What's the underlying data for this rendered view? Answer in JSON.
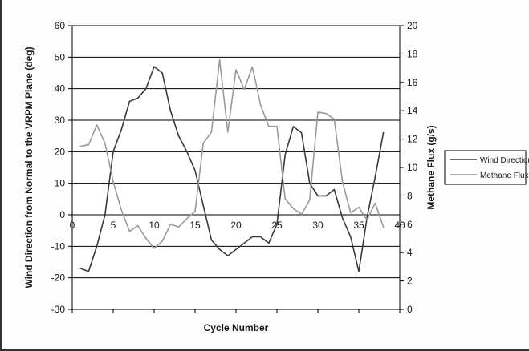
{
  "chart_data": {
    "type": "line",
    "title": "",
    "xlabel": "Cycle Number",
    "ylabel_left": "Wind Direction from Normal to the VRPM Plane (deg)",
    "ylabel_right": "Methane Flux (g/s)",
    "xlim": [
      0,
      40
    ],
    "ylim_left": [
      -30,
      60
    ],
    "ylim_right": [
      0,
      20
    ],
    "x_ticks": [
      "0",
      "5",
      "10",
      "15",
      "20",
      "25",
      "30",
      "35",
      "40"
    ],
    "y_left_ticks": [
      "60",
      "50",
      "40",
      "30",
      "20",
      "10",
      "0",
      "-10",
      "-20",
      "-30"
    ],
    "y_right_ticks": [
      "20",
      "18",
      "16",
      "14",
      "12",
      "10",
      "8",
      "6",
      "4",
      "2",
      "0"
    ],
    "grid": "horizontal",
    "legend_position": "right",
    "series": [
      {
        "name": "Wind Direction",
        "axis": "left",
        "color": "#3a3a3a",
        "x": [
          1,
          2,
          3,
          4,
          5,
          6,
          7,
          8,
          9,
          10,
          11,
          12,
          13,
          14,
          15,
          16,
          17,
          18,
          19,
          20,
          21,
          22,
          23,
          24,
          25,
          26,
          27,
          28,
          29,
          30,
          31,
          32,
          33,
          34,
          35,
          36,
          37,
          38
        ],
        "values": [
          -17,
          -18,
          -10,
          0,
          20,
          27,
          36,
          37,
          40,
          47,
          45,
          33,
          25,
          20,
          14,
          3,
          -8,
          -11,
          -13,
          -11,
          -9,
          -7,
          -7,
          -9,
          -3,
          19,
          28,
          26,
          10,
          6,
          6,
          8,
          -1,
          -7,
          -18,
          -1,
          12,
          26
        ]
      },
      {
        "name": "Methane Flux",
        "axis": "right",
        "color": "#9a9a9a",
        "x": [
          1,
          2,
          3,
          4,
          5,
          6,
          7,
          8,
          9,
          10,
          11,
          12,
          13,
          14,
          15,
          16,
          17,
          18,
          19,
          20,
          21,
          22,
          23,
          24,
          25,
          26,
          27,
          28,
          29,
          30,
          31,
          32,
          33,
          34,
          35,
          36,
          37,
          38
        ],
        "values": [
          11.5,
          11.6,
          13.0,
          11.7,
          9.0,
          7.0,
          5.5,
          5.9,
          5.0,
          4.3,
          4.8,
          6.0,
          5.8,
          6.4,
          6.9,
          11.7,
          12.5,
          17.6,
          12.5,
          16.9,
          15.5,
          17.1,
          14.4,
          12.9,
          12.9,
          7.8,
          7.1,
          6.7,
          7.7,
          13.9,
          13.8,
          13.4,
          9.0,
          6.8,
          7.2,
          6.3,
          7.5,
          5.8
        ]
      }
    ]
  }
}
